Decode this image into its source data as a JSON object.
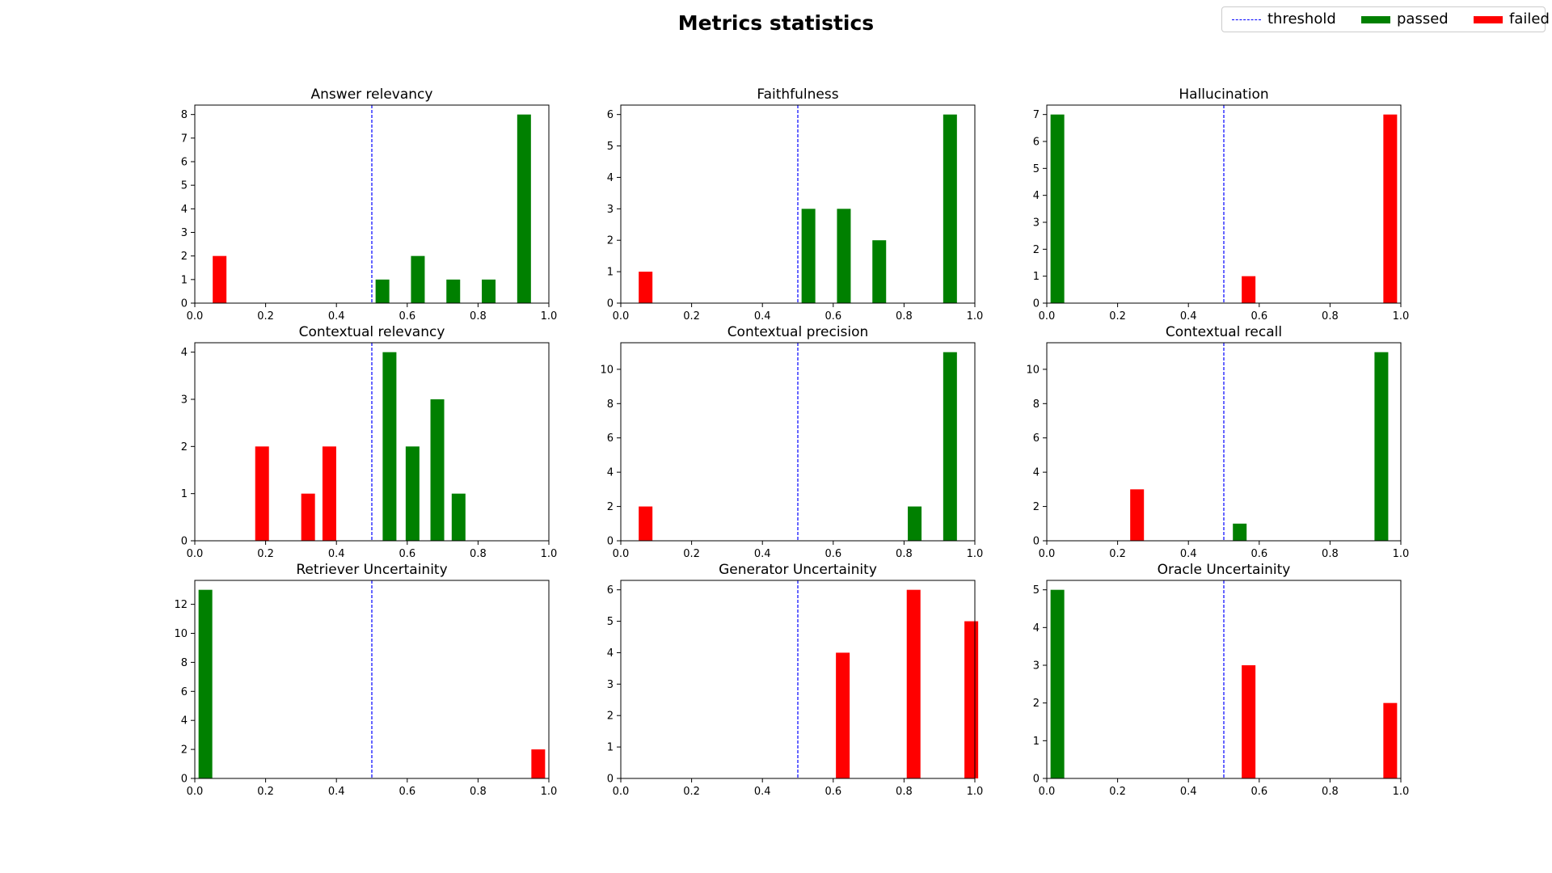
{
  "figure": {
    "title": "Metrics statistics",
    "legend": [
      {
        "label": "threshold",
        "kind": "line",
        "color": "#0000ff"
      },
      {
        "label": "passed",
        "kind": "patch",
        "color": "#008000"
      },
      {
        "label": "failed",
        "kind": "patch",
        "color": "#ff0000"
      }
    ]
  },
  "chart_data": [
    {
      "type": "bar",
      "title": "Answer relevancy",
      "threshold": 0.5,
      "xlim": [
        0,
        1
      ],
      "ylim": [
        0,
        8.4
      ],
      "xticks": [
        "0.0",
        "0.2",
        "0.4",
        "0.6",
        "0.8",
        "1.0"
      ],
      "yticks": [
        0,
        1,
        2,
        3,
        4,
        5,
        6,
        7,
        8
      ],
      "bars": [
        {
          "x": 0.07,
          "value": 2,
          "status": "failed"
        },
        {
          "x": 0.53,
          "value": 1,
          "status": "passed"
        },
        {
          "x": 0.63,
          "value": 2,
          "status": "passed"
        },
        {
          "x": 0.73,
          "value": 1,
          "status": "passed"
        },
        {
          "x": 0.83,
          "value": 1,
          "status": "passed"
        },
        {
          "x": 0.93,
          "value": 8,
          "status": "passed"
        }
      ]
    },
    {
      "type": "bar",
      "title": "Faithfulness",
      "threshold": 0.5,
      "xlim": [
        0,
        1
      ],
      "ylim": [
        0,
        6.3
      ],
      "xticks": [
        "0.0",
        "0.2",
        "0.4",
        "0.6",
        "0.8",
        "1.0"
      ],
      "yticks": [
        0,
        1,
        2,
        3,
        4,
        5,
        6
      ],
      "bars": [
        {
          "x": 0.07,
          "value": 1,
          "status": "failed"
        },
        {
          "x": 0.53,
          "value": 3,
          "status": "passed"
        },
        {
          "x": 0.63,
          "value": 3,
          "status": "passed"
        },
        {
          "x": 0.73,
          "value": 2,
          "status": "passed"
        },
        {
          "x": 0.93,
          "value": 6,
          "status": "passed"
        }
      ]
    },
    {
      "type": "bar",
      "title": "Hallucination",
      "threshold": 0.5,
      "xlim": [
        0,
        1
      ],
      "ylim": [
        0,
        7.35
      ],
      "xticks": [
        "0.0",
        "0.2",
        "0.4",
        "0.6",
        "0.8",
        "1.0"
      ],
      "yticks": [
        0,
        1,
        2,
        3,
        4,
        5,
        6,
        7
      ],
      "bars": [
        {
          "x": 0.03,
          "value": 7,
          "status": "passed"
        },
        {
          "x": 0.57,
          "value": 1,
          "status": "failed"
        },
        {
          "x": 0.97,
          "value": 7,
          "status": "failed"
        }
      ]
    },
    {
      "type": "bar",
      "title": "Contextual relevancy",
      "threshold": 0.5,
      "xlim": [
        0,
        1
      ],
      "ylim": [
        0,
        4.2
      ],
      "xticks": [
        "0.0",
        "0.2",
        "0.4",
        "0.6",
        "0.8",
        "1.0"
      ],
      "yticks": [
        0,
        1,
        2,
        3,
        4
      ],
      "bars": [
        {
          "x": 0.19,
          "value": 2,
          "status": "failed"
        },
        {
          "x": 0.32,
          "value": 1,
          "status": "failed"
        },
        {
          "x": 0.38,
          "value": 2,
          "status": "failed"
        },
        {
          "x": 0.55,
          "value": 4,
          "status": "passed"
        },
        {
          "x": 0.615,
          "value": 2,
          "status": "passed"
        },
        {
          "x": 0.685,
          "value": 3,
          "status": "passed"
        },
        {
          "x": 0.745,
          "value": 1,
          "status": "passed"
        }
      ]
    },
    {
      "type": "bar",
      "title": "Contextual precision",
      "threshold": 0.5,
      "xlim": [
        0,
        1
      ],
      "ylim": [
        0,
        11.55
      ],
      "xticks": [
        "0.0",
        "0.2",
        "0.4",
        "0.6",
        "0.8",
        "1.0"
      ],
      "yticks": [
        0,
        2,
        4,
        6,
        8,
        10
      ],
      "bars": [
        {
          "x": 0.07,
          "value": 2,
          "status": "failed"
        },
        {
          "x": 0.83,
          "value": 2,
          "status": "passed"
        },
        {
          "x": 0.93,
          "value": 11,
          "status": "passed"
        }
      ]
    },
    {
      "type": "bar",
      "title": "Contextual recall",
      "threshold": 0.5,
      "xlim": [
        0,
        1
      ],
      "ylim": [
        0,
        11.55
      ],
      "xticks": [
        "0.0",
        "0.2",
        "0.4",
        "0.6",
        "0.8",
        "1.0"
      ],
      "yticks": [
        0,
        2,
        4,
        6,
        8,
        10
      ],
      "bars": [
        {
          "x": 0.255,
          "value": 3,
          "status": "failed"
        },
        {
          "x": 0.545,
          "value": 1,
          "status": "passed"
        },
        {
          "x": 0.945,
          "value": 11,
          "status": "passed"
        }
      ]
    },
    {
      "type": "bar",
      "title": "Retriever Uncertainity",
      "threshold": 0.5,
      "xlim": [
        0,
        1
      ],
      "ylim": [
        0,
        13.65
      ],
      "xticks": [
        "0.0",
        "0.2",
        "0.4",
        "0.6",
        "0.8",
        "1.0"
      ],
      "yticks": [
        0,
        2,
        4,
        6,
        8,
        10,
        12
      ],
      "bars": [
        {
          "x": 0.03,
          "value": 13,
          "status": "passed"
        },
        {
          "x": 0.97,
          "value": 2,
          "status": "failed"
        }
      ]
    },
    {
      "type": "bar",
      "title": "Generator Uncertainity",
      "threshold": 0.5,
      "xlim": [
        0,
        1
      ],
      "ylim": [
        0,
        6.3
      ],
      "xticks": [
        "0.0",
        "0.2",
        "0.4",
        "0.6",
        "0.8",
        "1.0"
      ],
      "yticks": [
        0,
        1,
        2,
        3,
        4,
        5,
        6
      ],
      "bars": [
        {
          "x": 0.627,
          "value": 4,
          "status": "failed"
        },
        {
          "x": 0.827,
          "value": 6,
          "status": "failed"
        },
        {
          "x": 0.99,
          "value": 5,
          "status": "failed"
        }
      ]
    },
    {
      "type": "bar",
      "title": "Oracle Uncertainity",
      "threshold": 0.5,
      "xlim": [
        0,
        1
      ],
      "ylim": [
        0,
        5.25
      ],
      "xticks": [
        "0.0",
        "0.2",
        "0.4",
        "0.6",
        "0.8",
        "1.0"
      ],
      "yticks": [
        0,
        1,
        2,
        3,
        4,
        5
      ],
      "bars": [
        {
          "x": 0.03,
          "value": 5,
          "status": "passed"
        },
        {
          "x": 0.57,
          "value": 3,
          "status": "failed"
        },
        {
          "x": 0.97,
          "value": 2,
          "status": "failed"
        }
      ]
    }
  ]
}
